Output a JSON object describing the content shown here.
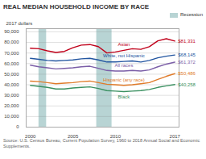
{
  "chart_data": {
    "type": "line",
    "title": "REAL MEDIAN HOUSEHOLD INCOME BY RACE",
    "ylabel": "2017 dollars",
    "caption": "Source: U.S. Census Bureau, Current Population Survey, 1960 to 2018 Annual Social and Economic Supplements.",
    "x": [
      2000,
      2001,
      2002,
      2003,
      2004,
      2005,
      2006,
      2007,
      2008,
      2009,
      2010,
      2011,
      2012,
      2013,
      2014,
      2015,
      2016,
      2017
    ],
    "series": [
      {
        "name": "Asian",
        "color": "#c0001a",
        "values": [
          74500,
          74000,
          72000,
          70500,
          71500,
          75000,
          77500,
          78000,
          76000,
          70000,
          71000,
          72500,
          74000,
          73500,
          76000,
          81500,
          83500,
          81331
        ],
        "value_labels": [
          null,
          null,
          null,
          null,
          null,
          null,
          null,
          null,
          null,
          null,
          null,
          null,
          null,
          null,
          null,
          null,
          null,
          "$81,331"
        ]
      },
      {
        "name": "White, not Hispanic",
        "color": "#2255a0",
        "values": [
          65000,
          64000,
          63000,
          62500,
          63000,
          63500,
          64500,
          65000,
          63500,
          61500,
          61500,
          62000,
          62500,
          61500,
          63000,
          65500,
          67000,
          68145
        ],
        "value_labels": [
          null,
          null,
          null,
          null,
          null,
          null,
          null,
          null,
          null,
          null,
          null,
          null,
          null,
          null,
          null,
          null,
          null,
          "$68,145"
        ]
      },
      {
        "name": "All races",
        "color": "#7b5ea7",
        "values": [
          58500,
          57000,
          56000,
          55000,
          55500,
          56000,
          57000,
          57500,
          55500,
          53500,
          53000,
          53000,
          53500,
          53000,
          54000,
          57000,
          59500,
          61372
        ],
        "value_labels": [
          null,
          null,
          null,
          null,
          null,
          null,
          null,
          null,
          null,
          null,
          null,
          null,
          null,
          null,
          null,
          null,
          null,
          "$61,372"
        ]
      },
      {
        "name": "Hispanic (any race)",
        "color": "#e07b2a",
        "values": [
          43500,
          43000,
          42000,
          41000,
          41500,
          42000,
          43000,
          43500,
          42000,
          40500,
          40000,
          39500,
          40000,
          41000,
          42000,
          45000,
          48000,
          50486
        ],
        "value_labels": [
          null,
          null,
          null,
          null,
          null,
          null,
          null,
          null,
          null,
          null,
          null,
          null,
          null,
          null,
          null,
          null,
          null,
          "$50,486"
        ]
      },
      {
        "name": "Black",
        "color": "#3a9060",
        "values": [
          39500,
          38500,
          37500,
          36000,
          36000,
          37000,
          37500,
          38000,
          36500,
          34500,
          34000,
          33500,
          34000,
          34500,
          35500,
          37500,
          39000,
          40258
        ],
        "value_labels": [
          null,
          null,
          null,
          null,
          null,
          null,
          null,
          null,
          null,
          null,
          null,
          null,
          null,
          null,
          null,
          null,
          null,
          "$40,258"
        ]
      }
    ],
    "bands": {
      "name": "Recession",
      "color": "#b8d4d4",
      "ranges": [
        [
          2001,
          2001.9
        ],
        [
          2007.8,
          2009.6
        ]
      ]
    },
    "legend": "top-right",
    "xlim": [
      1999.5,
      2017.5
    ],
    "xticks": [
      2000,
      2005,
      2010,
      2017
    ],
    "ylim": [
      0,
      93000
    ],
    "yticks": [
      0,
      {
        "value": 10000,
        "label": "10,000"
      },
      {
        "value": 20000,
        "label": "20,000"
      },
      {
        "value": 30000,
        "label": "30,000"
      },
      {
        "value": 40000,
        "label": "40,000"
      },
      {
        "value": 50000,
        "label": "50,000"
      },
      {
        "value": 60000,
        "label": "60,000"
      },
      {
        "value": 70000,
        "label": "70,000"
      },
      {
        "value": 80000,
        "label": "80,000"
      },
      {
        "value": 90000,
        "label": "90,000"
      }
    ],
    "grid": true
  }
}
